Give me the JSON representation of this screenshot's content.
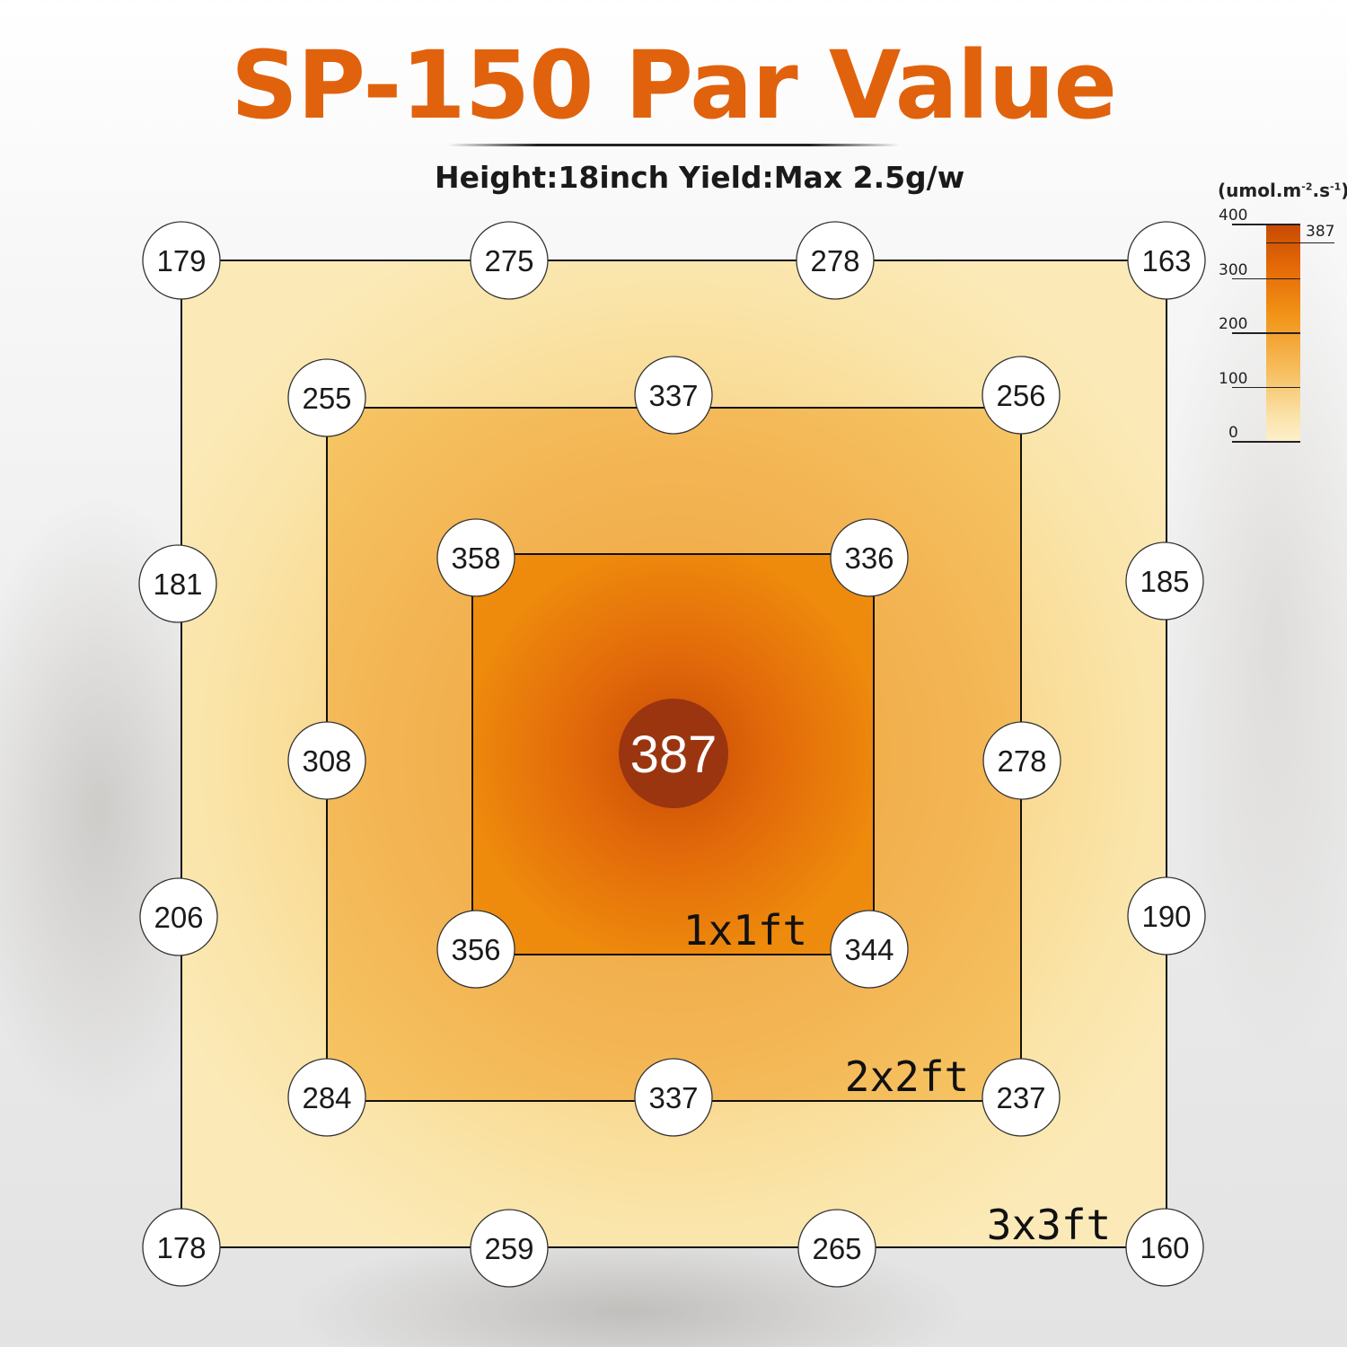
{
  "title": "SP-150 Par Value",
  "subtitle": {
    "height": "Height:18inch",
    "yield": "Yield:Max 2.5g/w"
  },
  "colors": {
    "title": "#e1620d",
    "zone_3x3": "#fae8a8",
    "zone_2x2": "#f4bb55",
    "zone_1x1": "#ee8a0c",
    "center_hot": "#c64a05",
    "center_dot": "#9b3510",
    "marker_fill": "#ffffff"
  },
  "chart_data": {
    "type": "heatmap",
    "title": "SP-150 Par Value",
    "unit_label": "(umol.m-2.s-1)",
    "max_value": 387,
    "center_value": 387,
    "colorbar": {
      "range": [
        0,
        400
      ],
      "ticks": [
        0,
        100,
        200,
        300,
        400
      ],
      "max_marker": 387
    },
    "zones": [
      {
        "name": "3x3ft",
        "points": [
          {
            "value": 179,
            "grid": "top-left"
          },
          {
            "value": 275,
            "grid": "top-1"
          },
          {
            "value": 278,
            "grid": "top-2"
          },
          {
            "value": 163,
            "grid": "top-right"
          },
          {
            "value": 181,
            "grid": "left-1"
          },
          {
            "value": 185,
            "grid": "right-1"
          },
          {
            "value": 206,
            "grid": "left-2"
          },
          {
            "value": 190,
            "grid": "right-2"
          },
          {
            "value": 178,
            "grid": "bottom-left"
          },
          {
            "value": 259,
            "grid": "bottom-1"
          },
          {
            "value": 265,
            "grid": "bottom-2"
          },
          {
            "value": 160,
            "grid": "bottom-right"
          }
        ]
      },
      {
        "name": "2x2ft",
        "points": [
          {
            "value": 255,
            "grid": "top-left"
          },
          {
            "value": 337,
            "grid": "top-middle"
          },
          {
            "value": 256,
            "grid": "top-right"
          },
          {
            "value": 308,
            "grid": "middle-left"
          },
          {
            "value": 278,
            "grid": "middle-right"
          },
          {
            "value": 284,
            "grid": "bottom-left"
          },
          {
            "value": 337,
            "grid": "bottom-middle"
          },
          {
            "value": 237,
            "grid": "bottom-right"
          }
        ]
      },
      {
        "name": "1x1ft",
        "points": [
          {
            "value": 358,
            "grid": "top-left"
          },
          {
            "value": 336,
            "grid": "top-right"
          },
          {
            "value": 356,
            "grid": "bottom-left"
          },
          {
            "value": 344,
            "grid": "bottom-right"
          }
        ]
      }
    ]
  }
}
